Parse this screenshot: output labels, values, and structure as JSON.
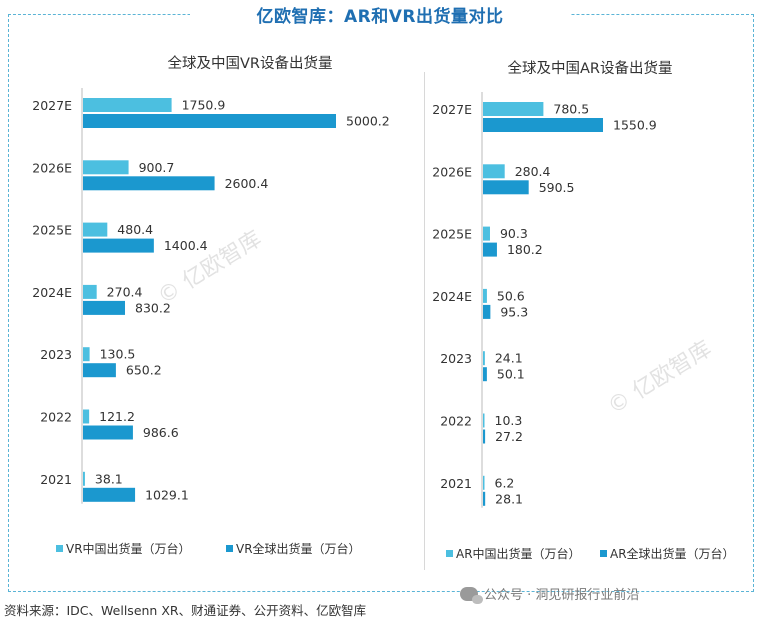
{
  "title": "亿欧智库：AR和VR出货量对比",
  "source": "资料来源：IDC、Wellsenn XR、财通证券、公开资料、亿欧智库",
  "wechat": "公众号 · 洞见研报行业前沿",
  "watermark": "© 亿欧智库",
  "colors": {
    "china": "#4cbfe0",
    "global": "#1b98cf",
    "axis": "#bbbbbb",
    "title": "#1f6fb2"
  },
  "chart_data": [
    {
      "type": "bar",
      "orientation": "horizontal",
      "title": "全球及中国VR设备出货量",
      "categories": [
        "2027E",
        "2026E",
        "2025E",
        "2024E",
        "2023",
        "2022",
        "2021"
      ],
      "series": [
        {
          "name": "VR中国出货量（万台）",
          "values": [
            1750.9,
            900.7,
            480.4,
            270.4,
            130.5,
            121.2,
            38.1
          ]
        },
        {
          "name": "VR全球出货量（万台）",
          "values": [
            5000.2,
            2600.4,
            1400.4,
            830.2,
            650.2,
            986.6,
            1029.1
          ]
        }
      ],
      "xlim": [
        0,
        5000.2
      ],
      "legend": "bottom"
    },
    {
      "type": "bar",
      "orientation": "horizontal",
      "title": "全球及中国AR设备出货量",
      "categories": [
        "2027E",
        "2026E",
        "2025E",
        "2024E",
        "2023",
        "2022",
        "2021"
      ],
      "series": [
        {
          "name": "AR中国出货量（万台）",
          "values": [
            780.5,
            280.4,
            90.3,
            50.6,
            24.1,
            10.3,
            6.2
          ]
        },
        {
          "name": "AR全球出货量（万台）",
          "values": [
            1550.9,
            590.5,
            180.2,
            95.3,
            50.1,
            27.2,
            28.1
          ]
        }
      ],
      "xlim": [
        0,
        1550.9
      ],
      "legend": "bottom"
    }
  ]
}
